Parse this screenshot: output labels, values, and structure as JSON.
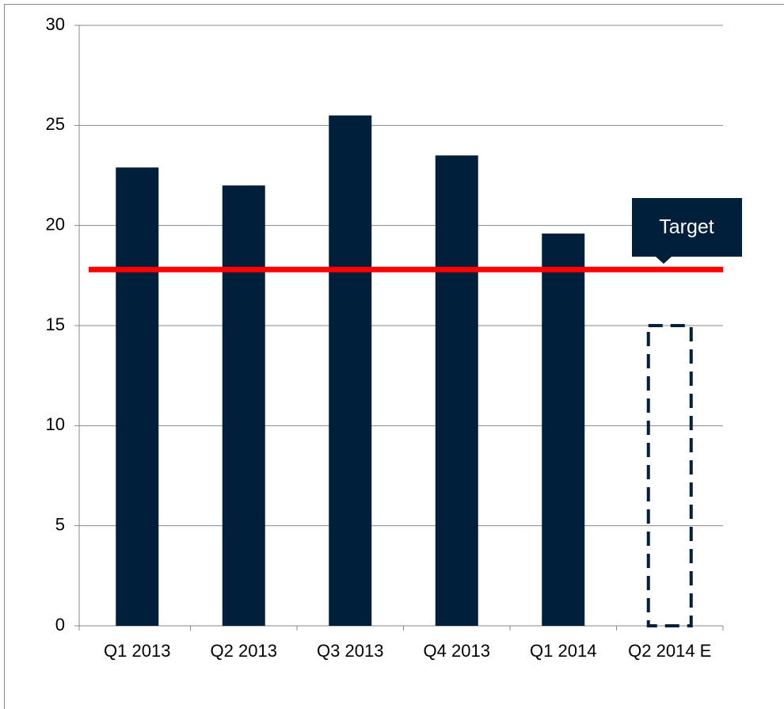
{
  "chart_data": {
    "type": "bar",
    "categories": [
      "Q1 2013",
      "Q2 2013",
      "Q3 2013",
      "Q4 2013",
      "Q1 2014",
      "Q2 2014 E"
    ],
    "values": [
      22.9,
      22.0,
      25.5,
      23.5,
      19.6,
      15.0
    ],
    "dashed": [
      false,
      false,
      false,
      false,
      false,
      true
    ],
    "color": "#001f3b",
    "ylim": [
      0,
      30
    ],
    "yticks": [
      0,
      5,
      10,
      15,
      20,
      25,
      30
    ],
    "grid": true,
    "target": {
      "label": "Target",
      "value": 17.8,
      "color": "#ff0000"
    }
  }
}
